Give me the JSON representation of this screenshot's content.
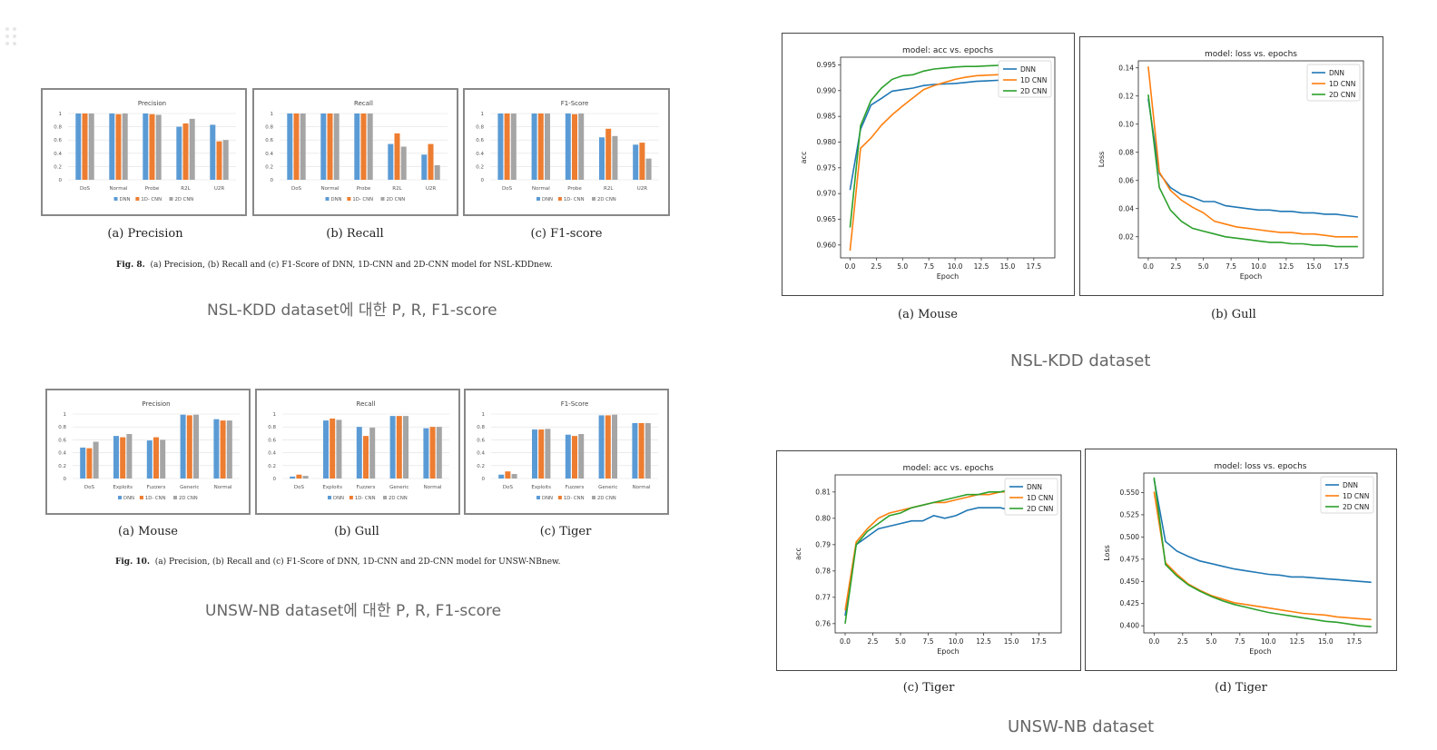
{
  "colors": {
    "dnn": "#5b9bd5",
    "cnn1d": "#ed7d31",
    "cnn2d": "#a5a5a5",
    "line_dnn": "#1f77b4",
    "line_1d": "#ff7f0e",
    "line_2d": "#2ca02c"
  },
  "left": {
    "top_captions": [
      "(a)  Precision",
      "(b)  Recall",
      "(c)  F1-score"
    ],
    "fig8_label": "Fig. 8.",
    "fig8_text": "(a) Precision, (b) Recall and (c) F1-Score of DNN, 1D-CNN and 2D-CNN model for NSL-KDDnew.",
    "section1": "NSL-KDD dataset에 대한 P, R, F1-score",
    "bottom_captions": [
      "(a)  Mouse",
      "(b)  Gull",
      "(c)  Tiger"
    ],
    "fig10_label": "Fig. 10.",
    "fig10_text": "(a) Precision, (b) Recall and (c) F1-Score of DNN, 1D-CNN and 2D-CNN model for UNSW-NBnew.",
    "section2": "UNSW-NB dataset에 대한 P, R, F1-score"
  },
  "right": {
    "top_captions": [
      "(a)  Mouse",
      "(b)  Gull"
    ],
    "section1": "NSL-KDD dataset",
    "bottom_captions": [
      "(c)  Tiger",
      "(d)  Tiger"
    ],
    "section2": "UNSW-NB dataset"
  },
  "chart_data": [
    {
      "id": "nsl_precision",
      "type": "bar",
      "title": "Precision",
      "categories": [
        "DoS",
        "Normal",
        "Probe",
        "R2L",
        "U2R"
      ],
      "ylim": [
        0,
        1
      ],
      "yticks": [
        "0",
        "0.2",
        "0.4",
        "0.6",
        "0.8",
        "1"
      ],
      "series": [
        {
          "name": "DNN",
          "values": [
            1.0,
            1.0,
            1.0,
            0.8,
            0.83
          ]
        },
        {
          "name": "1D- CNN",
          "values": [
            1.0,
            0.99,
            0.99,
            0.85,
            0.58
          ]
        },
        {
          "name": "2D CNN",
          "values": [
            1.0,
            1.0,
            0.98,
            0.92,
            0.6
          ]
        }
      ]
    },
    {
      "id": "nsl_recall",
      "type": "bar",
      "title": "Recall",
      "categories": [
        "DoS",
        "Normal",
        "Probe",
        "R2L",
        "U2R"
      ],
      "ylim": [
        0,
        1
      ],
      "yticks": [
        "0",
        "0.2",
        "0.4",
        "0.6",
        "0.8",
        "1"
      ],
      "series": [
        {
          "name": "DNN",
          "values": [
            1.0,
            1.0,
            1.0,
            0.54,
            0.38
          ]
        },
        {
          "name": "1D- CNN",
          "values": [
            1.0,
            1.0,
            1.0,
            0.7,
            0.54
          ]
        },
        {
          "name": "2D CNN",
          "values": [
            1.0,
            1.0,
            1.0,
            0.5,
            0.22
          ]
        }
      ]
    },
    {
      "id": "nsl_f1",
      "type": "bar",
      "title": "F1-Score",
      "categories": [
        "DoS",
        "Normal",
        "Probe",
        "R2L",
        "U2R"
      ],
      "ylim": [
        0,
        1
      ],
      "yticks": [
        "0",
        "0.2",
        "0.4",
        "0.6",
        "0.8",
        "1"
      ],
      "series": [
        {
          "name": "DNN",
          "values": [
            1.0,
            1.0,
            1.0,
            0.64,
            0.53
          ]
        },
        {
          "name": "1D- CNN",
          "values": [
            1.0,
            1.0,
            0.99,
            0.77,
            0.56
          ]
        },
        {
          "name": "2D CNN",
          "values": [
            1.0,
            1.0,
            1.0,
            0.66,
            0.32
          ]
        }
      ]
    },
    {
      "id": "unsw_precision",
      "type": "bar",
      "title": "Precision",
      "categories": [
        "DoS",
        "Exploits",
        "Fuzzers",
        "Generic",
        "Normal"
      ],
      "ylim": [
        0,
        1
      ],
      "yticks": [
        "0",
        "0.2",
        "0.4",
        "0.6",
        "0.8",
        "1"
      ],
      "series": [
        {
          "name": "DNN",
          "values": [
            0.48,
            0.66,
            0.59,
            0.99,
            0.92
          ]
        },
        {
          "name": "1D- CNN",
          "values": [
            0.47,
            0.64,
            0.64,
            0.98,
            0.9
          ]
        },
        {
          "name": "2D CNN",
          "values": [
            0.57,
            0.69,
            0.6,
            0.99,
            0.9
          ]
        }
      ]
    },
    {
      "id": "unsw_recall",
      "type": "bar",
      "title": "Recall",
      "categories": [
        "DoS",
        "Exploits",
        "Fuzzers",
        "Generic",
        "Normal"
      ],
      "ylim": [
        0,
        1
      ],
      "yticks": [
        "0",
        "0.2",
        "0.4",
        "0.6",
        "0.8",
        "1"
      ],
      "series": [
        {
          "name": "DNN",
          "values": [
            0.03,
            0.9,
            0.8,
            0.97,
            0.78
          ]
        },
        {
          "name": "1D- CNN",
          "values": [
            0.06,
            0.93,
            0.66,
            0.97,
            0.8
          ]
        },
        {
          "name": "2D CNN",
          "values": [
            0.04,
            0.91,
            0.79,
            0.97,
            0.8
          ]
        }
      ]
    },
    {
      "id": "unsw_f1",
      "type": "bar",
      "title": "F1-Score",
      "categories": [
        "DoS",
        "Exploits",
        "Fuzzers",
        "Generic",
        "Normal"
      ],
      "ylim": [
        0,
        1
      ],
      "yticks": [
        "0",
        "0.2",
        "0.4",
        "0.6",
        "0.8",
        "1"
      ],
      "series": [
        {
          "name": "DNN",
          "values": [
            0.06,
            0.76,
            0.68,
            0.98,
            0.86
          ]
        },
        {
          "name": "1D- CNN",
          "values": [
            0.11,
            0.76,
            0.66,
            0.98,
            0.86
          ]
        },
        {
          "name": "2D CNN",
          "values": [
            0.07,
            0.77,
            0.69,
            0.99,
            0.86
          ]
        }
      ]
    },
    {
      "id": "nsl_acc",
      "type": "line",
      "title": "model: acc vs. epochs",
      "xlabel": "Epoch",
      "ylabel": "acc",
      "xlim": [
        -0.9,
        19.5
      ],
      "ylim": [
        0.9575,
        0.9965
      ],
      "xticks": [
        0,
        2.5,
        5,
        7.5,
        10,
        12.5,
        15,
        17.5
      ],
      "xticklabels": [
        "0.0",
        "2.5",
        "5.0",
        "7.5",
        "10.0",
        "12.5",
        "15.0",
        "17.5"
      ],
      "yticks": [
        0.96,
        0.965,
        0.97,
        0.975,
        0.98,
        0.985,
        0.99,
        0.995
      ],
      "yticklabels": [
        "0.960",
        "0.965",
        "0.970",
        "0.975",
        "0.980",
        "0.985",
        "0.990",
        "0.995"
      ],
      "legend": "upper right",
      "series": [
        {
          "name": "DNN",
          "values": [
            0.9707,
            0.9825,
            0.9872,
            0.9885,
            0.9899,
            0.9902,
            0.9905,
            0.991,
            0.9912,
            0.9913,
            0.9914,
            0.9916,
            0.9918,
            0.9919,
            0.992,
            0.9921,
            0.9921,
            0.9922,
            0.9922,
            0.9922
          ]
        },
        {
          "name": "1D CNN",
          "values": [
            0.9589,
            0.9788,
            0.9808,
            0.9833,
            0.9853,
            0.987,
            0.9886,
            0.9902,
            0.991,
            0.9916,
            0.9922,
            0.9926,
            0.9929,
            0.993,
            0.9931,
            0.9932,
            0.9933,
            0.9933,
            0.9933,
            0.9933
          ]
        },
        {
          "name": "2D CNN",
          "values": [
            0.9634,
            0.9832,
            0.9881,
            0.9905,
            0.9922,
            0.9929,
            0.9931,
            0.9938,
            0.9942,
            0.9944,
            0.9946,
            0.9947,
            0.9947,
            0.9948,
            0.9949,
            0.9951,
            0.9952,
            0.9952,
            0.9953,
            0.9953
          ]
        }
      ]
    },
    {
      "id": "nsl_loss",
      "type": "line",
      "title": "model: loss vs. epochs",
      "xlabel": "Epoch",
      "ylabel": "Loss",
      "xlim": [
        -0.9,
        19.5
      ],
      "ylim": [
        0.005,
        0.145
      ],
      "xticks": [
        0,
        2.5,
        5,
        7.5,
        10,
        12.5,
        15,
        17.5
      ],
      "xticklabels": [
        "0.0",
        "2.5",
        "5.0",
        "7.5",
        "10.0",
        "12.5",
        "15.0",
        "17.5"
      ],
      "yticks": [
        0.02,
        0.04,
        0.06,
        0.08,
        0.1,
        0.12,
        0.14
      ],
      "yticklabels": [
        "0.02",
        "0.04",
        "0.06",
        "0.08",
        "0.10",
        "0.12",
        "0.14"
      ],
      "legend": "upper right",
      "series": [
        {
          "name": "DNN",
          "values": [
            0.118,
            0.065,
            0.055,
            0.05,
            0.048,
            0.045,
            0.045,
            0.042,
            0.041,
            0.04,
            0.039,
            0.039,
            0.038,
            0.038,
            0.037,
            0.037,
            0.036,
            0.036,
            0.035,
            0.034
          ]
        },
        {
          "name": "1D CNN",
          "values": [
            0.141,
            0.066,
            0.053,
            0.046,
            0.041,
            0.037,
            0.031,
            0.029,
            0.027,
            0.026,
            0.025,
            0.024,
            0.023,
            0.023,
            0.022,
            0.022,
            0.021,
            0.02,
            0.02,
            0.02
          ]
        },
        {
          "name": "2D CNN",
          "values": [
            0.121,
            0.055,
            0.039,
            0.031,
            0.026,
            0.024,
            0.022,
            0.02,
            0.019,
            0.018,
            0.017,
            0.016,
            0.016,
            0.015,
            0.015,
            0.014,
            0.014,
            0.013,
            0.013,
            0.013
          ]
        }
      ]
    },
    {
      "id": "unsw_acc",
      "type": "line",
      "title": "model: acc vs. epochs",
      "xlabel": "Epoch",
      "ylabel": "acc",
      "xlim": [
        -0.9,
        19.5
      ],
      "ylim": [
        0.7565,
        0.8165
      ],
      "xticks": [
        0,
        2.5,
        5,
        7.5,
        10,
        12.5,
        15,
        17.5
      ],
      "xticklabels": [
        "0.0",
        "2.5",
        "5.0",
        "7.5",
        "10.0",
        "12.5",
        "15.0",
        "17.5"
      ],
      "yticks": [
        0.76,
        0.77,
        0.78,
        0.79,
        0.8,
        0.81
      ],
      "yticklabels": [
        "0.76",
        "0.77",
        "0.78",
        "0.79",
        "0.80",
        "0.81"
      ],
      "legend": "upper right",
      "series": [
        {
          "name": "DNN",
          "values": [
            0.763,
            0.79,
            0.793,
            0.796,
            0.797,
            0.798,
            0.799,
            0.799,
            0.801,
            0.8,
            0.801,
            0.803,
            0.804,
            0.804,
            0.804,
            0.803,
            0.803,
            0.804,
            0.804,
            0.805
          ]
        },
        {
          "name": "1D CNN",
          "values": [
            0.765,
            0.791,
            0.796,
            0.8,
            0.802,
            0.803,
            0.804,
            0.805,
            0.806,
            0.806,
            0.807,
            0.808,
            0.809,
            0.809,
            0.81,
            0.81,
            0.811,
            0.811,
            0.811,
            0.811
          ]
        },
        {
          "name": "2D CNN",
          "values": [
            0.76,
            0.79,
            0.795,
            0.798,
            0.801,
            0.802,
            0.804,
            0.805,
            0.806,
            0.807,
            0.808,
            0.809,
            0.809,
            0.81,
            0.81,
            0.811,
            0.812,
            0.812,
            0.813,
            0.813
          ]
        }
      ]
    },
    {
      "id": "unsw_loss",
      "type": "line",
      "title": "model: loss vs. epochs",
      "xlabel": "Epoch",
      "ylabel": "Loss",
      "xlim": [
        -0.9,
        19.5
      ],
      "ylim": [
        0.392,
        0.572
      ],
      "xticks": [
        0,
        2.5,
        5,
        7.5,
        10,
        12.5,
        15,
        17.5
      ],
      "xticklabels": [
        "0.0",
        "2.5",
        "5.0",
        "7.5",
        "10.0",
        "12.5",
        "15.0",
        "17.5"
      ],
      "yticks": [
        0.4,
        0.425,
        0.45,
        0.475,
        0.5,
        0.525,
        0.55
      ],
      "yticklabels": [
        "0.400",
        "0.425",
        "0.450",
        "0.475",
        "0.500",
        "0.525",
        "0.550"
      ],
      "legend": "upper right",
      "series": [
        {
          "name": "DNN",
          "values": [
            0.565,
            0.495,
            0.484,
            0.478,
            0.473,
            0.47,
            0.467,
            0.464,
            0.462,
            0.46,
            0.458,
            0.457,
            0.455,
            0.455,
            0.454,
            0.453,
            0.452,
            0.451,
            0.45,
            0.449
          ]
        },
        {
          "name": "1D CNN",
          "values": [
            0.551,
            0.471,
            0.458,
            0.447,
            0.44,
            0.434,
            0.43,
            0.426,
            0.424,
            0.422,
            0.42,
            0.418,
            0.416,
            0.414,
            0.413,
            0.412,
            0.41,
            0.409,
            0.408,
            0.407
          ]
        },
        {
          "name": "2D CNN",
          "values": [
            0.567,
            0.469,
            0.456,
            0.446,
            0.439,
            0.433,
            0.428,
            0.424,
            0.421,
            0.418,
            0.415,
            0.413,
            0.411,
            0.409,
            0.407,
            0.405,
            0.404,
            0.402,
            0.4,
            0.399
          ]
        }
      ]
    }
  ]
}
